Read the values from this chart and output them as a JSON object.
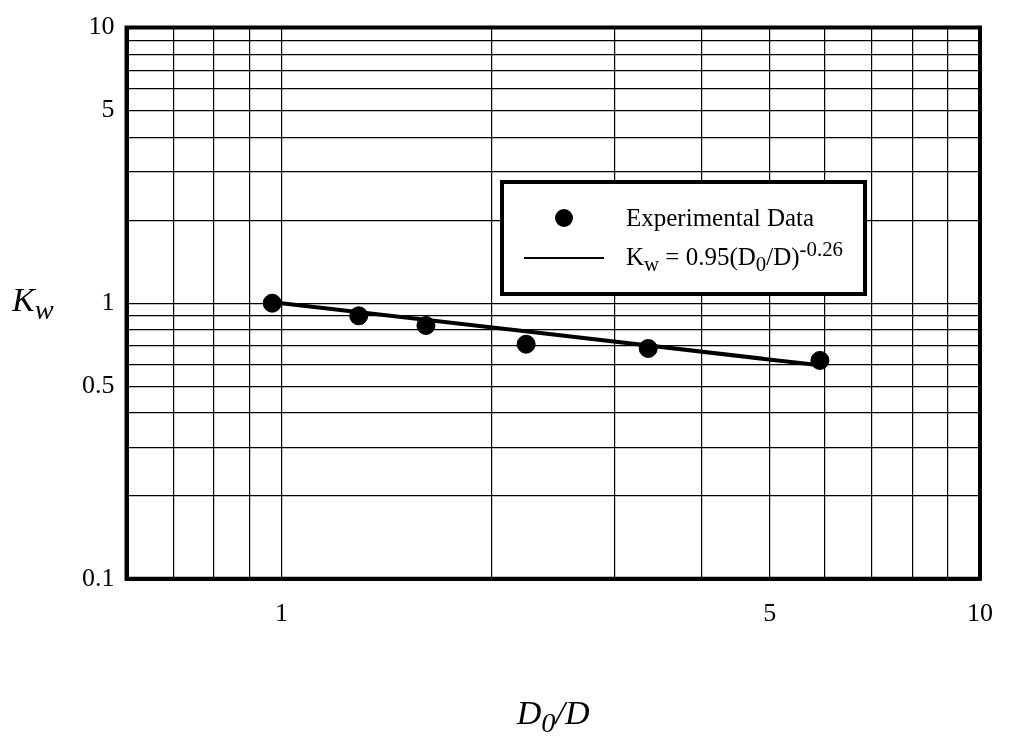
{
  "chart_data": {
    "type": "scatter",
    "xlabel": "D$_{0}$/D",
    "ylabel": "K$_{w}$",
    "log": "xy",
    "grid": true,
    "legend": "right",
    "xlim": [
      0.6,
      10
    ],
    "ylim": [
      0.1,
      10
    ],
    "xticks": [
      {
        "value": 0.7,
        "label": null
      },
      {
        "value": 0.8,
        "label": null
      },
      {
        "value": 0.9,
        "label": null
      },
      1,
      {
        "value": 2,
        "label": null
      },
      {
        "value": 3,
        "label": null
      },
      {
        "value": 4,
        "label": null
      },
      5,
      {
        "value": 6,
        "label": null
      },
      {
        "value": 7,
        "label": null
      },
      {
        "value": 8,
        "label": null
      },
      {
        "value": 9,
        "label": null
      },
      10
    ],
    "yticks": [
      0.1,
      {
        "value": 0.2,
        "label": null
      },
      {
        "value": 0.3,
        "label": null
      },
      {
        "value": 0.4,
        "label": null
      },
      0.5,
      {
        "value": 0.6,
        "label": null
      },
      {
        "value": 0.7,
        "label": null
      },
      {
        "value": 0.8,
        "label": null
      },
      {
        "value": 0.9,
        "label": null
      },
      1,
      {
        "value": 2,
        "label": null
      },
      {
        "value": 3,
        "label": null
      },
      {
        "value": 4,
        "label": null
      },
      5,
      {
        "value": 6,
        "label": null
      },
      {
        "value": 7,
        "label": null
      },
      {
        "value": 8,
        "label": null
      },
      {
        "value": 9,
        "label": null
      },
      10
    ],
    "series": [
      {
        "name": "Experimental Data",
        "marker": "circle",
        "color": "#000000",
        "x": [
          0.97,
          1.29,
          1.61,
          2.24,
          3.35,
          5.9
        ],
        "values": [
          1.0,
          0.9,
          0.83,
          0.71,
          0.685,
          0.62
        ]
      },
      {
        "name": "K$_{w}$ = 0.95(D$_{0}$/D)$^{-0.26}$",
        "type": "line",
        "marker": "none",
        "color": "#000000",
        "x": [
          1.0,
          5.9
        ],
        "values": [
          1.0,
          0.595
        ]
      }
    ]
  }
}
